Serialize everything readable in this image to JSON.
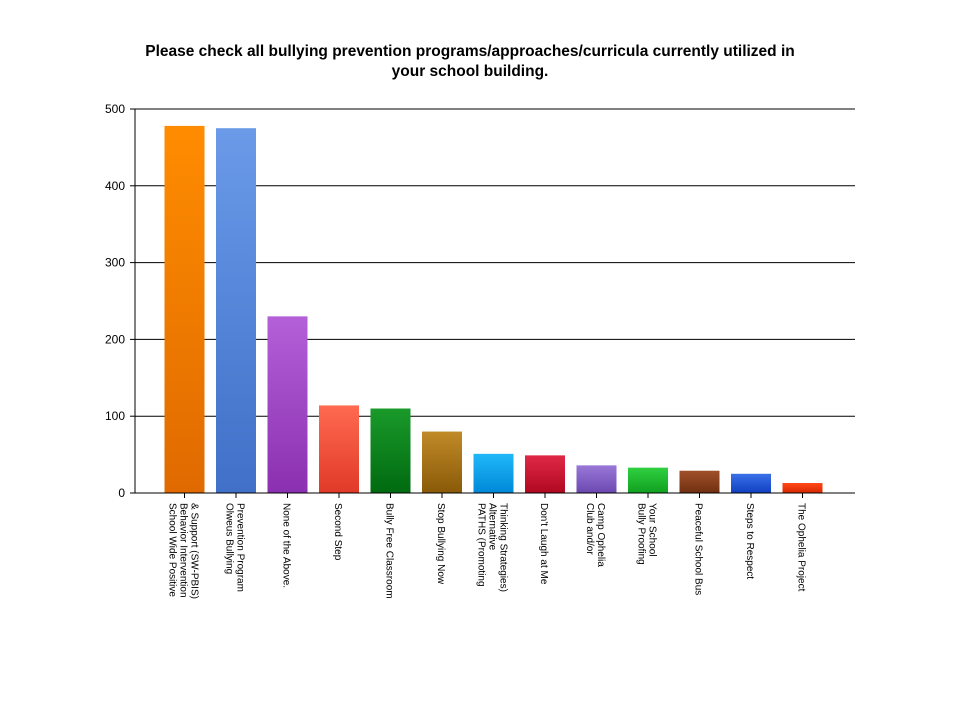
{
  "chart_data": {
    "type": "bar",
    "title_lines": [
      "Please check all bullying prevention programs/approaches/curricula currently utilized in",
      "your school building."
    ],
    "xlabel": "",
    "ylabel": "",
    "ylim": [
      0,
      500
    ],
    "yticks": [
      0,
      100,
      200,
      300,
      400,
      500
    ],
    "grid": true,
    "categories": [
      [
        "School Wide Positive",
        "Behavior Intervention",
        "& Support (SW-PBIS)"
      ],
      [
        "Olweus Bullying",
        "Prevention Program"
      ],
      [
        "None of the Above."
      ],
      [
        "Second Step"
      ],
      [
        "Bully Free Classroom"
      ],
      [
        "Stop Bullying Now"
      ],
      [
        "PATHS (Promoting",
        "Alternative",
        "Thinking Strategies)"
      ],
      [
        "Don't Laugh at Me"
      ],
      [
        "Club and/or",
        "Camp Ophelia"
      ],
      [
        "Bully Proofing",
        "Your School"
      ],
      [
        "Peaceful School Bus"
      ],
      [
        "Steps to Respect"
      ],
      [
        "The Ophelia Project"
      ]
    ],
    "values": [
      478,
      475,
      230,
      114,
      110,
      80,
      51,
      49,
      36,
      33,
      29,
      25,
      13
    ],
    "colors": [
      [
        "#ff8c00",
        "#e06a00"
      ],
      [
        "#6a9ae8",
        "#4070c8"
      ],
      [
        "#b460d8",
        "#8a30b0"
      ],
      [
        "#ff6a50",
        "#e03a28"
      ],
      [
        "#1a9a2a",
        "#006a10"
      ],
      [
        "#c08a28",
        "#8a5a08"
      ],
      [
        "#20b8f8",
        "#0088d8"
      ],
      [
        "#e02848",
        "#b00820"
      ],
      [
        "#9a78d8",
        "#6a48b0"
      ],
      [
        "#30d040",
        "#10a020"
      ],
      [
        "#a0502a",
        "#703010"
      ],
      [
        "#3a70e8",
        "#1040c0"
      ],
      [
        "#ff4818",
        "#d82800"
      ]
    ]
  }
}
